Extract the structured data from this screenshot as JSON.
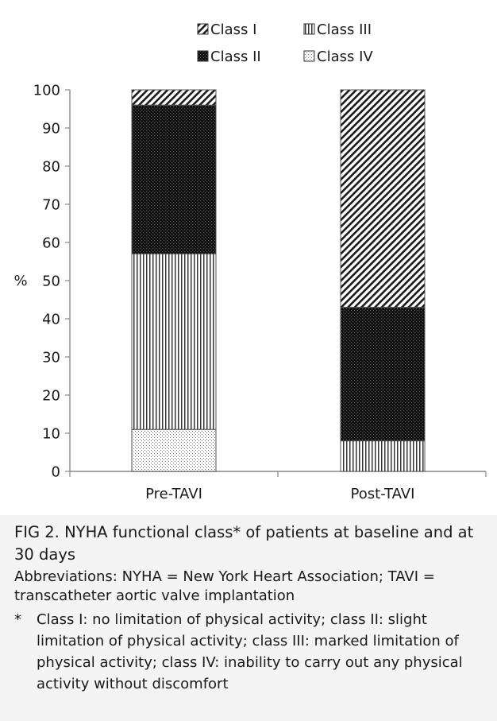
{
  "chart_data": {
    "type": "bar",
    "stacked": true,
    "categories": [
      "Pre-TAVI",
      "Post-TAVI"
    ],
    "series": [
      {
        "name": "Class I",
        "values": [
          4,
          57
        ],
        "pattern": "diagonal-hatch"
      },
      {
        "name": "Class II",
        "values": [
          39,
          35
        ],
        "pattern": "dense-black"
      },
      {
        "name": "Class III",
        "values": [
          46,
          8
        ],
        "pattern": "vertical-lines"
      },
      {
        "name": "Class IV",
        "values": [
          11,
          0
        ],
        "pattern": "dots"
      }
    ],
    "stack_order_bottom_to_top": [
      "Class IV",
      "Class III",
      "Class II",
      "Class I"
    ],
    "ylabel": "%",
    "xlabel": "",
    "ylim": [
      0,
      100
    ],
    "yticks": [
      0,
      10,
      20,
      30,
      40,
      50,
      60,
      70,
      80,
      90,
      100
    ],
    "grid": false,
    "legend_position": "top"
  },
  "caption": {
    "title": "FIG 2. NYHA functional class* of patients at baseline and at 30 days",
    "abbreviations": "Abbreviations: NYHA = New York Heart Association; TAVI = transcatheter aortic valve implantation",
    "footnote_marker": "*",
    "footnote": "Class I: no limitation of physical activity; class II: slight limitation of physical activity; class III: marked limitation of physical activity; class IV: inability to carry out any physical activity without discomfort"
  }
}
